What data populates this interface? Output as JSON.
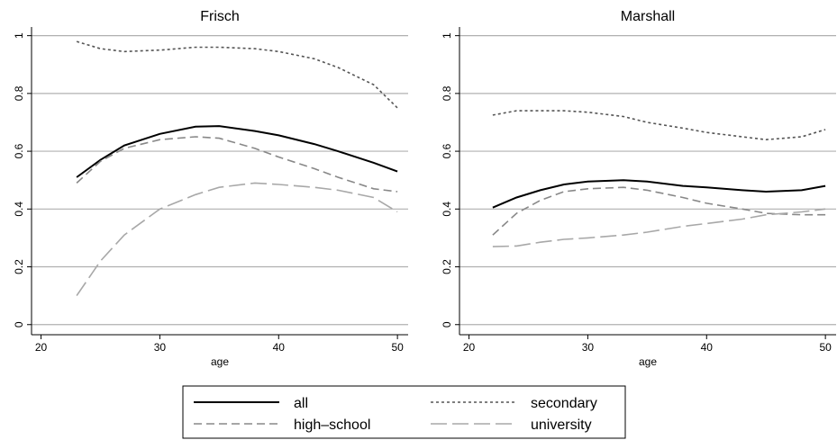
{
  "chart_data": [
    {
      "type": "line",
      "title": "Frisch",
      "xlabel": "age",
      "x": [
        23,
        25,
        27,
        30,
        33,
        35,
        38,
        40,
        43,
        45,
        48,
        50
      ],
      "xlim": [
        19.2,
        50.9
      ],
      "ylim": [
        -0.035,
        1.03
      ],
      "xticks": [
        20,
        30,
        40,
        50
      ],
      "yticks": [
        0,
        0.2,
        0.4,
        0.6,
        0.8,
        1
      ],
      "grid": true,
      "series": [
        {
          "name": "all",
          "color": "#000000",
          "line_style": "solid",
          "values": [
            0.51,
            0.57,
            0.62,
            0.66,
            0.685,
            0.687,
            0.67,
            0.655,
            0.625,
            0.6,
            0.56,
            0.53
          ]
        },
        {
          "name": "secondary",
          "color": "#555555",
          "line_style": "dotted",
          "values": [
            0.98,
            0.955,
            0.945,
            0.95,
            0.96,
            0.96,
            0.955,
            0.945,
            0.92,
            0.89,
            0.83,
            0.75
          ]
        },
        {
          "name": "high–school",
          "color": "#888888",
          "line_style": "dashed",
          "values": [
            0.49,
            0.565,
            0.61,
            0.64,
            0.65,
            0.645,
            0.61,
            0.58,
            0.54,
            0.51,
            0.47,
            0.46
          ]
        },
        {
          "name": "university",
          "color": "#a8a8a8",
          "line_style": "long-dashed",
          "values": [
            0.1,
            0.22,
            0.31,
            0.4,
            0.45,
            0.475,
            0.49,
            0.485,
            0.475,
            0.465,
            0.44,
            0.39
          ]
        }
      ]
    },
    {
      "type": "line",
      "title": "Marshall",
      "xlabel": "age",
      "x": [
        22,
        24,
        26,
        28,
        30,
        33,
        35,
        38,
        40,
        43,
        45,
        48,
        50
      ],
      "xlim": [
        19.2,
        50.9
      ],
      "ylim": [
        -0.035,
        1.03
      ],
      "xticks": [
        20,
        30,
        40,
        50
      ],
      "yticks": [
        0,
        0.2,
        0.4,
        0.6,
        0.8,
        1
      ],
      "grid": true,
      "series": [
        {
          "color": "#000000",
          "line_style": "solid",
          "values": [
            0.405,
            0.44,
            0.465,
            0.485,
            0.495,
            0.5,
            0.495,
            0.48,
            0.475,
            0.465,
            0.46,
            0.465,
            0.48
          ]
        },
        {
          "color": "#555555",
          "line_style": "dotted",
          "values": [
            0.725,
            0.74,
            0.74,
            0.74,
            0.735,
            0.72,
            0.7,
            0.68,
            0.665,
            0.65,
            0.64,
            0.65,
            0.675
          ]
        },
        {
          "color": "#888888",
          "line_style": "dashed",
          "values": [
            0.31,
            0.385,
            0.43,
            0.46,
            0.47,
            0.475,
            0.465,
            0.44,
            0.42,
            0.4,
            0.385,
            0.38,
            0.38
          ]
        },
        {
          "color": "#a8a8a8",
          "line_style": "long-dashed",
          "values": [
            0.27,
            0.272,
            0.285,
            0.295,
            0.3,
            0.31,
            0.32,
            0.34,
            0.35,
            0.365,
            0.38,
            0.39,
            0.4
          ]
        }
      ]
    }
  ]
}
